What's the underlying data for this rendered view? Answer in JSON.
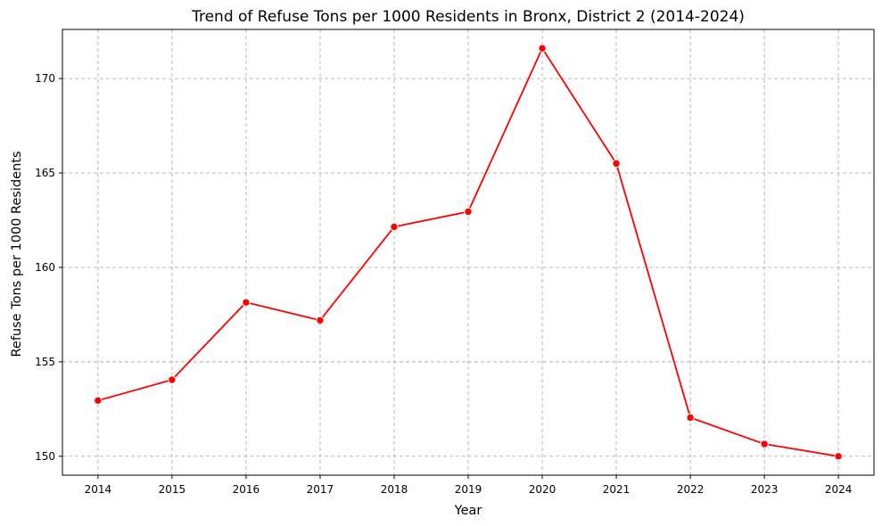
{
  "chart_data": {
    "type": "line",
    "title": "Trend of Refuse Tons per 1000 Residents in Bronx, District 2 (2014-2024)",
    "xlabel": "Year",
    "ylabel": "Refuse Tons per 1000 Residents",
    "x": [
      2014,
      2015,
      2016,
      2017,
      2018,
      2019,
      2020,
      2021,
      2022,
      2023,
      2024
    ],
    "x_tick_labels": [
      "2014",
      "2015",
      "2016",
      "2017",
      "2018",
      "2019",
      "2020",
      "2021",
      "2022",
      "2023",
      "2024"
    ],
    "y_ticks": [
      150,
      155,
      160,
      165,
      170
    ],
    "y_tick_labels": [
      "150",
      "155",
      "160",
      "165",
      "170"
    ],
    "ylim": [
      149.0,
      172.6
    ],
    "xlim": [
      2013.52,
      2024.48
    ],
    "series": [
      {
        "values": [
          152.95,
          154.05,
          158.15,
          157.2,
          162.15,
          162.95,
          171.6,
          165.5,
          152.05,
          150.65,
          150.0
        ],
        "color": "#ff0000",
        "marker": "circle"
      }
    ],
    "grid": true,
    "legend": "none"
  }
}
